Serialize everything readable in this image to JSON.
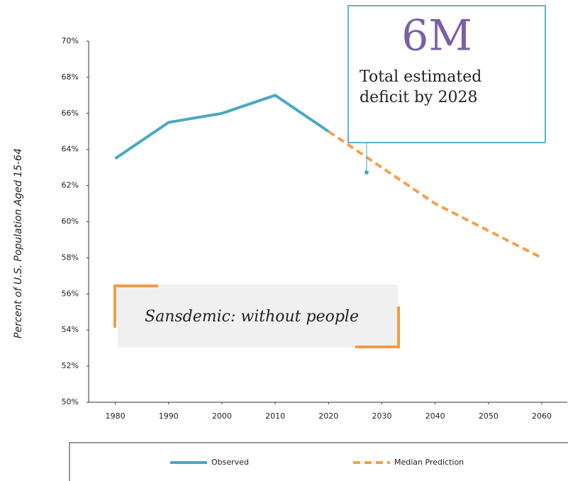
{
  "chart_data": {
    "type": "line",
    "y_label": "Percent of U.S. Population Aged 15-64",
    "x": [
      1980,
      1990,
      2000,
      2010,
      2020,
      2030,
      2040,
      2050,
      2060
    ],
    "series": [
      {
        "name": "Observed",
        "color": "#4aa8c2",
        "dashed": false,
        "values": [
          63.5,
          65.5,
          66,
          67,
          65,
          null,
          null,
          null,
          null
        ]
      },
      {
        "name": "Median Prediction",
        "color": "#f5a04e",
        "dashed": true,
        "values": [
          null,
          null,
          null,
          null,
          65,
          63,
          61,
          59.5,
          58
        ]
      }
    ],
    "xlim": [
      1975,
      2065
    ],
    "xticks": [
      1980,
      1990,
      2000,
      2010,
      2020,
      2030,
      2040,
      2050,
      2060
    ],
    "ylim": [
      50,
      70
    ],
    "yticks": [
      {
        "value": 50,
        "label": "50%"
      },
      {
        "value": 52,
        "label": "52%"
      },
      {
        "value": 54,
        "label": "54%"
      },
      {
        "value": 56,
        "label": "56%"
      },
      {
        "value": 58,
        "label": "58%"
      },
      {
        "value": 60,
        "label": "60%"
      },
      {
        "value": 62,
        "label": "62%"
      },
      {
        "value": 64,
        "label": "64%"
      },
      {
        "value": 66,
        "label": "66%"
      },
      {
        "value": 68,
        "label": "68%"
      },
      {
        "value": 70,
        "label": "70%"
      }
    ],
    "callout": {
      "headline": "6M",
      "lines": [
        "Total estimated",
        "deficit by 2028"
      ]
    },
    "banner": "Sansdemic: without people"
  }
}
